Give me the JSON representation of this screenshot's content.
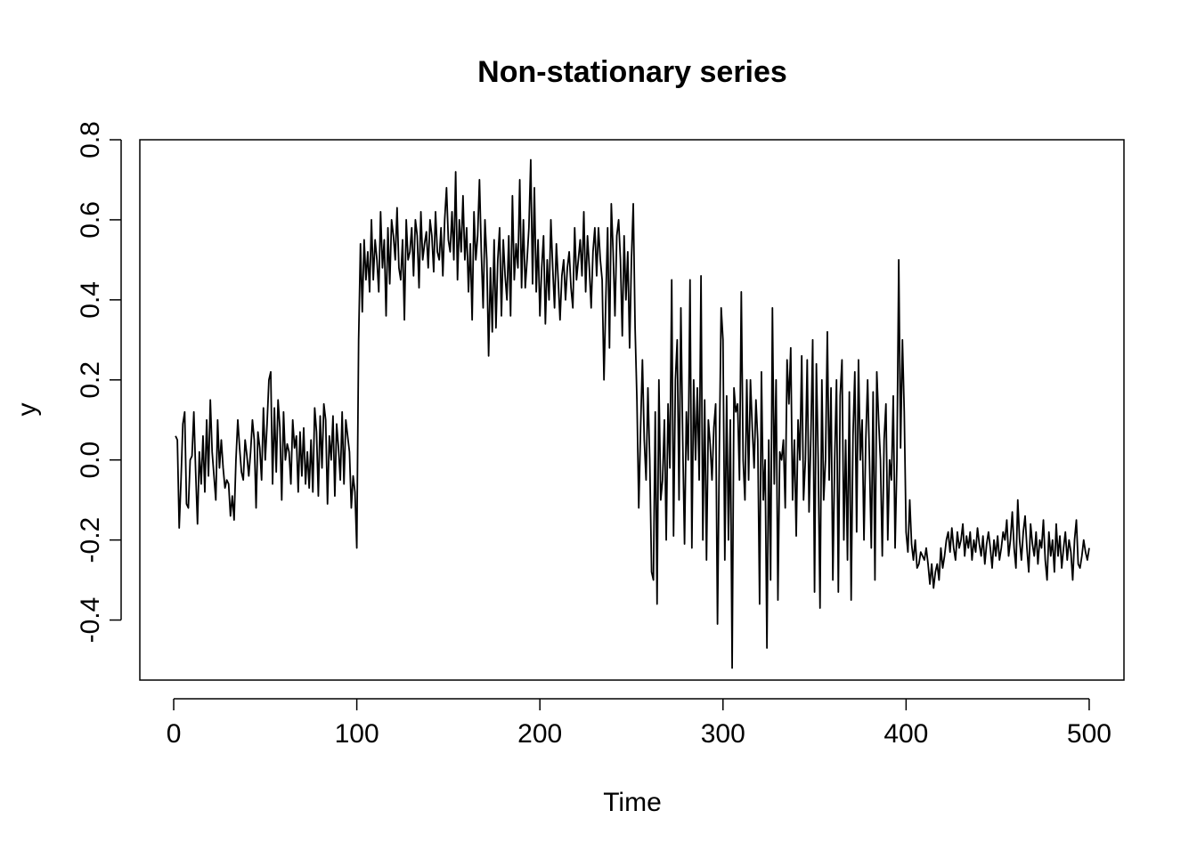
{
  "chart_data": {
    "type": "line",
    "title": "Non-stationary series",
    "xlabel": "Time",
    "ylabel": "y",
    "xlim": [
      -18.5,
      519
    ],
    "ylim": [
      -0.55,
      0.8
    ],
    "x_ticks": [
      "0",
      "100",
      "200",
      "300",
      "400",
      "500"
    ],
    "y_ticks": [
      "-0.4",
      "-0.2",
      "0.0",
      "0.2",
      "0.4",
      "0.6",
      "0.8"
    ],
    "grid": false,
    "legend": "none",
    "line_color": "#000000",
    "series": [
      {
        "x_start": 1,
        "x_end": 500,
        "segments": [
          {
            "from": 1,
            "to": 100,
            "values": [
              0.06,
              0.05,
              -0.17,
              -0.05,
              0.09,
              0.12,
              -0.11,
              -0.12,
              0.0,
              0.01,
              0.12,
              -0.03,
              -0.16,
              0.02,
              -0.06,
              0.06,
              -0.08,
              0.1,
              -0.04,
              0.15,
              0.02,
              -0.04,
              -0.1,
              0.1,
              -0.02,
              0.05,
              -0.02,
              -0.07,
              -0.05,
              -0.06,
              -0.14,
              -0.09,
              -0.15,
              0.0,
              0.1,
              0.03,
              -0.03,
              -0.05,
              0.05,
              0.01,
              -0.04,
              0.02,
              0.1,
              0.05,
              -0.12,
              0.07,
              0.03,
              -0.05,
              0.13,
              0.0,
              0.09,
              0.2,
              0.22,
              -0.06,
              0.13,
              -0.03,
              0.15,
              0.08,
              -0.1,
              0.12,
              0.0,
              0.04,
              0.02,
              -0.06,
              0.1,
              0.03,
              0.06,
              -0.08,
              0.07,
              -0.04,
              0.08,
              -0.06,
              0.02,
              -0.07,
              0.05,
              -0.08,
              0.13,
              0.07,
              -0.09,
              0.11,
              -0.02,
              0.14,
              0.1,
              -0.11,
              0.06,
              0.0,
              0.11,
              -0.09,
              0.09,
              0.03,
              -0.05,
              0.12,
              -0.06,
              0.1,
              0.06,
              0.02,
              -0.12,
              -0.04,
              -0.08,
              -0.22
            ]
          },
          {
            "from": 101,
            "to": 200,
            "values": [
              0.3,
              0.54,
              0.37,
              0.55,
              0.45,
              0.52,
              0.42,
              0.6,
              0.45,
              0.55,
              0.5,
              0.42,
              0.62,
              0.48,
              0.55,
              0.36,
              0.58,
              0.44,
              0.6,
              0.56,
              0.5,
              0.63,
              0.48,
              0.45,
              0.55,
              0.35,
              0.6,
              0.5,
              0.52,
              0.58,
              0.46,
              0.6,
              0.56,
              0.43,
              0.62,
              0.5,
              0.54,
              0.57,
              0.48,
              0.6,
              0.56,
              0.47,
              0.62,
              0.52,
              0.5,
              0.58,
              0.46,
              0.6,
              0.68,
              0.55,
              0.52,
              0.62,
              0.5,
              0.72,
              0.45,
              0.6,
              0.52,
              0.66,
              0.5,
              0.58,
              0.42,
              0.54,
              0.35,
              0.62,
              0.5,
              0.56,
              0.7,
              0.52,
              0.38,
              0.6,
              0.5,
              0.26,
              0.48,
              0.32,
              0.55,
              0.33,
              0.5,
              0.58,
              0.36,
              0.55,
              0.46,
              0.4,
              0.56,
              0.36,
              0.66,
              0.45,
              0.54,
              0.48,
              0.7,
              0.43,
              0.6,
              0.43,
              0.5,
              0.58,
              0.75,
              0.44,
              0.68,
              0.42,
              0.55,
              0.36
            ]
          },
          {
            "from": 201,
            "to": 300,
            "values": [
              0.48,
              0.56,
              0.34,
              0.5,
              0.4,
              0.6,
              0.48,
              0.38,
              0.54,
              0.45,
              0.35,
              0.46,
              0.5,
              0.4,
              0.48,
              0.52,
              0.43,
              0.38,
              0.58,
              0.45,
              0.5,
              0.55,
              0.46,
              0.62,
              0.42,
              0.56,
              0.48,
              0.38,
              0.52,
              0.58,
              0.46,
              0.58,
              0.5,
              0.45,
              0.2,
              0.4,
              0.58,
              0.28,
              0.64,
              0.52,
              0.36,
              0.56,
              0.6,
              0.5,
              0.31,
              0.56,
              0.4,
              0.52,
              0.28,
              0.5,
              0.64,
              0.33,
              0.15,
              -0.12,
              0.08,
              0.25,
              0.05,
              -0.05,
              0.18,
              0.0,
              -0.28,
              -0.3,
              0.12,
              -0.36,
              0.2,
              -0.1,
              -0.05,
              0.1,
              -0.2,
              0.14,
              -0.02,
              0.45,
              -0.19,
              0.2,
              0.3,
              -0.1,
              0.38,
              0.05,
              -0.21,
              0.12,
              0.0,
              0.45,
              -0.22,
              0.2,
              0.0,
              0.18,
              -0.05,
              0.46,
              -0.2,
              0.15,
              -0.25,
              0.1,
              0.04,
              -0.05,
              0.08,
              0.14,
              -0.41,
              0.02,
              0.38,
              0.3
            ]
          },
          {
            "from": 301,
            "to": 400,
            "values": [
              -0.25,
              0.16,
              -0.2,
              0.1,
              -0.52,
              0.18,
              0.12,
              0.14,
              -0.05,
              0.42,
              0.0,
              -0.1,
              0.2,
              -0.05,
              0.2,
              0.08,
              -0.02,
              0.15,
              0.05,
              -0.36,
              0.22,
              -0.1,
              0.0,
              -0.47,
              0.05,
              -0.3,
              0.38,
              -0.06,
              0.2,
              -0.35,
              0.02,
              0.0,
              0.05,
              -0.12,
              0.25,
              0.14,
              0.28,
              -0.1,
              0.05,
              -0.19,
              0.1,
              0.0,
              0.26,
              -0.1,
              0.0,
              0.25,
              -0.13,
              0.06,
              0.3,
              -0.33,
              0.24,
              0.0,
              -0.37,
              0.2,
              -0.1,
              0.0,
              0.32,
              -0.05,
              0.18,
              -0.3,
              0.0,
              0.2,
              -0.33,
              0.16,
              0.25,
              -0.2,
              0.05,
              -0.25,
              0.17,
              -0.35,
              0.06,
              0.22,
              -0.18,
              0.25,
              0.0,
              0.1,
              -0.2,
              0.05,
              0.2,
              0.0,
              -0.22,
              0.17,
              -0.3,
              0.22,
              0.1,
              0.0,
              -0.24,
              0.05,
              0.14,
              -0.2,
              0.0,
              -0.05,
              0.16,
              -0.22,
              0.0,
              0.5,
              0.03,
              0.3,
              0.12,
              -0.18
            ]
          },
          {
            "from": 401,
            "to": 500,
            "values": [
              -0.23,
              -0.1,
              -0.21,
              -0.25,
              -0.2,
              -0.27,
              -0.26,
              -0.23,
              -0.24,
              -0.25,
              -0.22,
              -0.26,
              -0.31,
              -0.26,
              -0.32,
              -0.28,
              -0.26,
              -0.3,
              -0.22,
              -0.27,
              -0.24,
              -0.2,
              -0.18,
              -0.23,
              -0.17,
              -0.22,
              -0.25,
              -0.18,
              -0.22,
              -0.2,
              -0.16,
              -0.24,
              -0.19,
              -0.22,
              -0.18,
              -0.25,
              -0.2,
              -0.23,
              -0.17,
              -0.21,
              -0.24,
              -0.19,
              -0.26,
              -0.21,
              -0.18,
              -0.22,
              -0.27,
              -0.2,
              -0.24,
              -0.19,
              -0.25,
              -0.22,
              -0.18,
              -0.2,
              -0.15,
              -0.24,
              -0.2,
              -0.13,
              -0.22,
              -0.27,
              -0.1,
              -0.2,
              -0.25,
              -0.18,
              -0.14,
              -0.22,
              -0.28,
              -0.16,
              -0.21,
              -0.24,
              -0.18,
              -0.26,
              -0.2,
              -0.22,
              -0.15,
              -0.25,
              -0.3,
              -0.18,
              -0.24,
              -0.2,
              -0.28,
              -0.16,
              -0.24,
              -0.19,
              -0.27,
              -0.22,
              -0.18,
              -0.25,
              -0.2,
              -0.23,
              -0.3,
              -0.2,
              -0.15,
              -0.26,
              -0.27,
              -0.24,
              -0.2,
              -0.23,
              -0.25,
              -0.22
            ]
          }
        ]
      }
    ]
  }
}
